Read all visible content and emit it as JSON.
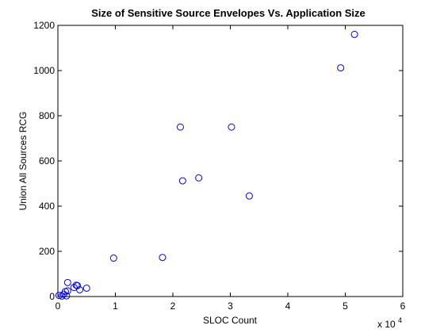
{
  "chart_data": {
    "type": "scatter",
    "title": "Size of Sensitive Source Envelopes Vs. Application Size",
    "xlabel": "SLOC Count",
    "ylabel": "Union All Sources RCG",
    "x_multiplier_label": "x 10",
    "x_multiplier_exponent": "4",
    "xlim": [
      0,
      6
    ],
    "ylim": [
      0,
      1200
    ],
    "xticks": [
      0,
      1,
      2,
      3,
      4,
      5,
      6
    ],
    "yticks": [
      0,
      200,
      400,
      600,
      800,
      1000,
      1200
    ],
    "xtick_labels": [
      "0",
      "1",
      "2",
      "3",
      "4",
      "5",
      "6"
    ],
    "ytick_labels": [
      "0",
      "200",
      "400",
      "600",
      "800",
      "1000",
      "1200"
    ],
    "grid": false,
    "legend": "none",
    "marker": "open-circle",
    "marker_color": "#0000ff",
    "series": [
      {
        "points": [
          {
            "x": 0.02,
            "y": 5
          },
          {
            "x": 0.07,
            "y": 2
          },
          {
            "x": 0.1,
            "y": 10
          },
          {
            "x": 0.13,
            "y": 22
          },
          {
            "x": 0.15,
            "y": 3
          },
          {
            "x": 0.17,
            "y": 25
          },
          {
            "x": 0.17,
            "y": 62
          },
          {
            "x": 0.28,
            "y": 40
          },
          {
            "x": 0.32,
            "y": 50
          },
          {
            "x": 0.34,
            "y": 48
          },
          {
            "x": 0.38,
            "y": 30
          },
          {
            "x": 0.5,
            "y": 37
          },
          {
            "x": 0.97,
            "y": 170
          },
          {
            "x": 1.82,
            "y": 173
          },
          {
            "x": 2.13,
            "y": 750
          },
          {
            "x": 2.17,
            "y": 512
          },
          {
            "x": 2.45,
            "y": 525
          },
          {
            "x": 3.02,
            "y": 750
          },
          {
            "x": 3.33,
            "y": 445
          },
          {
            "x": 4.92,
            "y": 1012
          },
          {
            "x": 5.16,
            "y": 1160
          }
        ]
      }
    ]
  }
}
